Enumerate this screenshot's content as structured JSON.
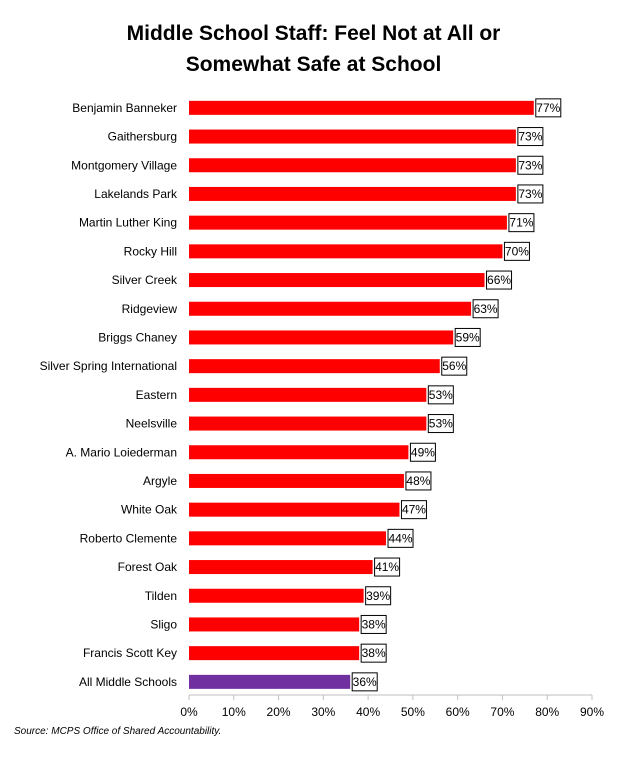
{
  "chart_data": {
    "type": "bar",
    "orientation": "horizontal",
    "title_line1": "Middle School Staff: Feel Not at All or",
    "title_line2": "Somewhat Safe at School",
    "categories": [
      "Benjamin Banneker",
      "Gaithersburg",
      "Montgomery Village",
      "Lakelands Park",
      "Martin Luther King",
      "Rocky Hill",
      "Silver Creek",
      "Ridgeview",
      "Briggs Chaney",
      "Silver Spring International",
      "Eastern",
      "Neelsville",
      "A. Mario Loiederman",
      "Argyle",
      "White Oak",
      "Roberto Clemente",
      "Forest Oak",
      "Tilden",
      "Sligo",
      "Francis Scott Key",
      "All Middle Schools"
    ],
    "values": [
      77,
      73,
      73,
      73,
      71,
      70,
      66,
      63,
      59,
      56,
      53,
      53,
      49,
      48,
      47,
      44,
      41,
      39,
      38,
      38,
      36
    ],
    "data_labels": [
      "77%",
      "73%",
      "73%",
      "73%",
      "71%",
      "70%",
      "66%",
      "63%",
      "59%",
      "56%",
      "53%",
      "53%",
      "49%",
      "48%",
      "47%",
      "44%",
      "41%",
      "39%",
      "38%",
      "38%",
      "36%"
    ],
    "xlim": [
      0,
      90
    ],
    "xticks": [
      0,
      10,
      20,
      30,
      40,
      50,
      60,
      70,
      80,
      90
    ],
    "xtick_labels": [
      "0%",
      "10%",
      "20%",
      "30%",
      "40%",
      "50%",
      "60%",
      "70%",
      "80%",
      "90%"
    ],
    "bar_color": "#ff0000",
    "highlight_color": "#7030a0",
    "highlight_category": "All Middle Schools",
    "grid": false,
    "legend": "none"
  },
  "source": "Source: MCPS Office of Shared Accountability."
}
